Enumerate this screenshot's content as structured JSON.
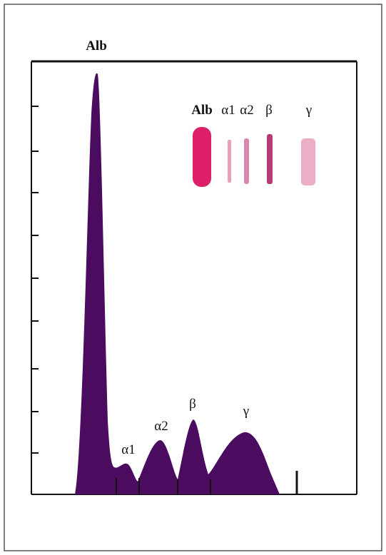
{
  "peak_labels": [
    "Alb",
    "α1",
    "α2",
    "β",
    "γ"
  ],
  "gel_labels": [
    "Alb",
    "α1",
    "α2",
    "β",
    "γ"
  ]
}
